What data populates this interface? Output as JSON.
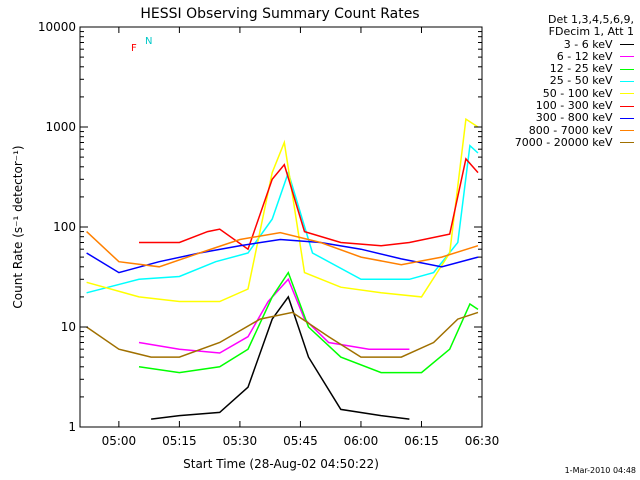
{
  "chart_data": {
    "type": "line",
    "title": "HESSI Observing Summary Count Rates",
    "xlabel": "Start Time (28-Aug-02 04:50:22)",
    "ylabel": "Count Rate (s⁻¹ detector⁻¹)",
    "y_scale": "log",
    "ylim": [
      1,
      10000
    ],
    "xlim": [
      "04:50:22",
      "06:30:00"
    ],
    "x_ticks": [
      "05:00",
      "05:15",
      "05:30",
      "05:45",
      "06:00",
      "06:15",
      "06:30"
    ],
    "y_ticks": [
      "1",
      "10",
      "100",
      "1000",
      "10000"
    ],
    "legend_header": [
      "Det 1,3,4,5,6,9,",
      "FDecim 1, Att 1"
    ],
    "legend_position": "right, outside",
    "flag_labels": {
      "F": "F",
      "N": "N"
    },
    "series": [
      {
        "name": "3 - 6 keV",
        "color": "#000000",
        "x": [
          "05:08",
          "05:15",
          "05:25",
          "05:32",
          "05:38",
          "05:42",
          "05:47",
          "05:55",
          "06:05",
          "06:12"
        ],
        "y": [
          1.2,
          1.3,
          1.4,
          2.5,
          12,
          20,
          5,
          1.5,
          1.3,
          1.2
        ]
      },
      {
        "name": "6 - 12 keV",
        "color": "#ff00ff",
        "x": [
          "05:05",
          "05:15",
          "05:25",
          "05:32",
          "05:37",
          "05:42",
          "05:46",
          "05:52",
          "06:02",
          "06:12"
        ],
        "y": [
          7,
          6,
          5.5,
          8,
          18,
          30,
          12,
          7,
          6,
          6
        ]
      },
      {
        "name": "12 - 25 keV",
        "color": "#00ff00",
        "x": [
          "05:05",
          "05:15",
          "05:25",
          "05:32",
          "05:38",
          "05:42",
          "05:47",
          "05:55",
          "06:05",
          "06:15",
          "06:22",
          "06:27",
          "06:29"
        ],
        "y": [
          4,
          3.5,
          4,
          6,
          20,
          35,
          10,
          5,
          3.5,
          3.5,
          6,
          17,
          15
        ]
      },
      {
        "name": "25 - 50 keV",
        "color": "#00ffff",
        "x": [
          "04:52",
          "05:05",
          "05:15",
          "05:24",
          "05:32",
          "05:38",
          "05:42",
          "05:48",
          "06:00",
          "06:12",
          "06:18",
          "06:24",
          "06:27",
          "06:29"
        ],
        "y": [
          22,
          30,
          32,
          45,
          55,
          120,
          350,
          55,
          30,
          30,
          35,
          70,
          650,
          550
        ]
      },
      {
        "name": "50 - 100 keV",
        "color": "#ffff00",
        "x": [
          "04:52",
          "05:05",
          "05:15",
          "05:25",
          "05:32",
          "05:38",
          "05:41",
          "05:46",
          "05:55",
          "06:05",
          "06:15",
          "06:22",
          "06:26",
          "06:29"
        ],
        "y": [
          28,
          20,
          18,
          18,
          24,
          350,
          700,
          35,
          25,
          22,
          20,
          55,
          1200,
          1000
        ]
      },
      {
        "name": "100 - 300 keV",
        "color": "#ff0000",
        "x": [
          "05:05",
          "05:15",
          "05:22",
          "05:25",
          "05:32",
          "05:38",
          "05:41",
          "05:46",
          "05:55",
          "06:05",
          "06:12",
          "06:22",
          "06:26",
          "06:29"
        ],
        "y": [
          70,
          70,
          90,
          95,
          60,
          300,
          420,
          90,
          70,
          65,
          70,
          85,
          480,
          350
        ]
      },
      {
        "name": "300 - 800 keV",
        "color": "#0000ff",
        "x": [
          "04:52",
          "05:00",
          "05:10",
          "05:20",
          "05:30",
          "05:40",
          "05:50",
          "06:00",
          "06:10",
          "06:20",
          "06:29"
        ],
        "y": [
          55,
          35,
          45,
          55,
          65,
          75,
          70,
          60,
          48,
          40,
          50
        ]
      },
      {
        "name": "800 - 7000 keV",
        "color": "#ff8000",
        "x": [
          "04:52",
          "05:00",
          "05:10",
          "05:20",
          "05:30",
          "05:40",
          "05:50",
          "06:00",
          "06:10",
          "06:20",
          "06:29"
        ],
        "y": [
          90,
          45,
          40,
          55,
          75,
          88,
          70,
          50,
          42,
          50,
          65
        ]
      },
      {
        "name": "7000 - 20000 keV",
        "color": "#a07000",
        "x": [
          "04:52",
          "05:00",
          "05:08",
          "05:15",
          "05:25",
          "05:35",
          "05:43",
          "05:52",
          "06:00",
          "06:10",
          "06:18",
          "06:24",
          "06:29"
        ],
        "y": [
          10,
          6,
          5,
          5,
          7,
          12,
          14,
          8,
          5,
          5,
          7,
          12,
          14
        ]
      }
    ]
  },
  "footer": {
    "timestamp": "1-Mar-2010 04:48"
  }
}
